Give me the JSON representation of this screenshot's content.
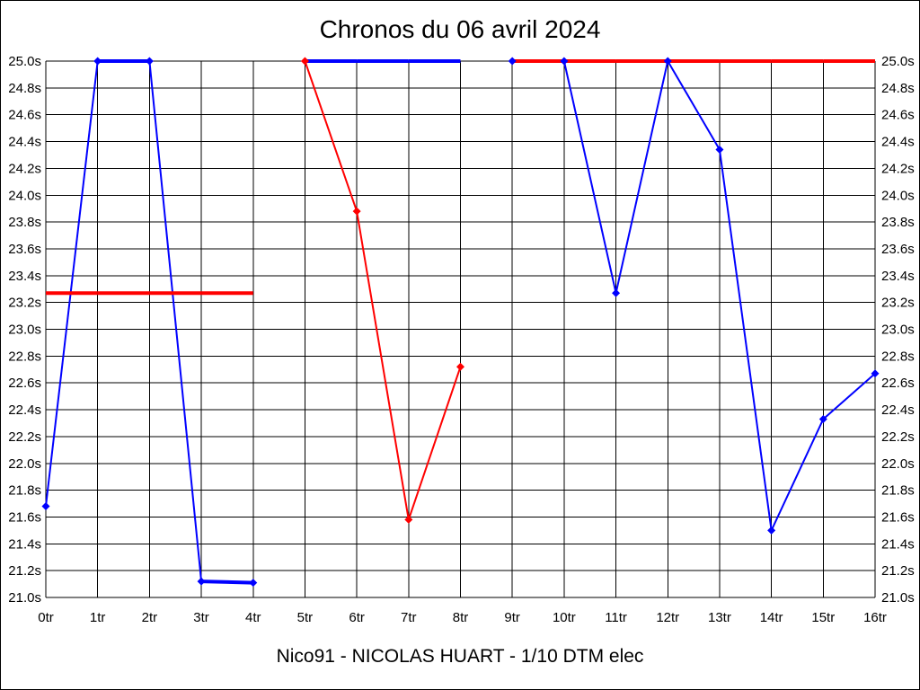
{
  "window": {
    "title": "Chronos du 06 avril 2024"
  },
  "chart_data": {
    "type": "line",
    "title": "Chronos du 06 avril 2024",
    "footer": "Nico91 - NICOLAS HUART - 1/10 DTM elec",
    "x_unit": "tr",
    "y_unit": "s",
    "xlim": [
      0,
      16
    ],
    "ylim": [
      21.0,
      25.0
    ],
    "y_step": 0.2,
    "grid": true,
    "y_labels_both_sides": true,
    "x_tick_labels": [
      "0tr",
      "1tr",
      "2tr",
      "3tr",
      "4tr",
      "5tr",
      "6tr",
      "7tr",
      "8tr",
      "9tr",
      "10tr",
      "11tr",
      "12tr",
      "13tr",
      "14tr",
      "15tr",
      "16tr"
    ],
    "y_tick_labels": [
      "25.0s",
      "24.8s",
      "24.6s",
      "24.4s",
      "24.2s",
      "24.0s",
      "23.8s",
      "23.6s",
      "23.4s",
      "23.2s",
      "23.0s",
      "22.8s",
      "22.6s",
      "22.4s",
      "22.2s",
      "22.0s",
      "21.8s",
      "21.6s",
      "21.4s",
      "21.2s",
      "21.0s"
    ],
    "colors": {
      "background": "#ffffff",
      "grid": "#000000",
      "text": "#000000",
      "blue_series": "#0000ff",
      "red_series": "#ff0000"
    },
    "series": [
      {
        "name": "serie-bleue",
        "color": "#0000ff",
        "segments": [
          {
            "laps": [
              0,
              1,
              2,
              3,
              4
            ],
            "times": [
              21.68,
              25.0,
              25.0,
              21.12,
              21.11
            ],
            "markers": true
          },
          {
            "laps": [
              5,
              6,
              7,
              8
            ],
            "times": [
              25.0,
              25.0,
              25.0,
              25.0
            ],
            "markers": false
          },
          {
            "laps": [
              9,
              10,
              11,
              12,
              13,
              14,
              15,
              16
            ],
            "times": [
              25.0,
              25.0,
              23.27,
              25.0,
              24.34,
              21.5,
              22.33,
              22.67
            ],
            "markers": true
          }
        ]
      },
      {
        "name": "serie-rouge",
        "color": "#ff0000",
        "segments": [
          {
            "laps": [
              0,
              1,
              2,
              3,
              4
            ],
            "times": [
              23.27,
              23.27,
              23.27,
              23.27,
              23.27
            ],
            "markers": false
          },
          {
            "laps": [
              5,
              6,
              7,
              8
            ],
            "times": [
              25.0,
              23.88,
              21.58,
              22.72
            ],
            "markers": true
          },
          {
            "laps": [
              9,
              10,
              11,
              12,
              13,
              14,
              15,
              16
            ],
            "times": [
              25.0,
              25.0,
              25.0,
              25.0,
              25.0,
              25.0,
              25.0,
              25.0
            ],
            "markers": false
          }
        ]
      }
    ]
  }
}
